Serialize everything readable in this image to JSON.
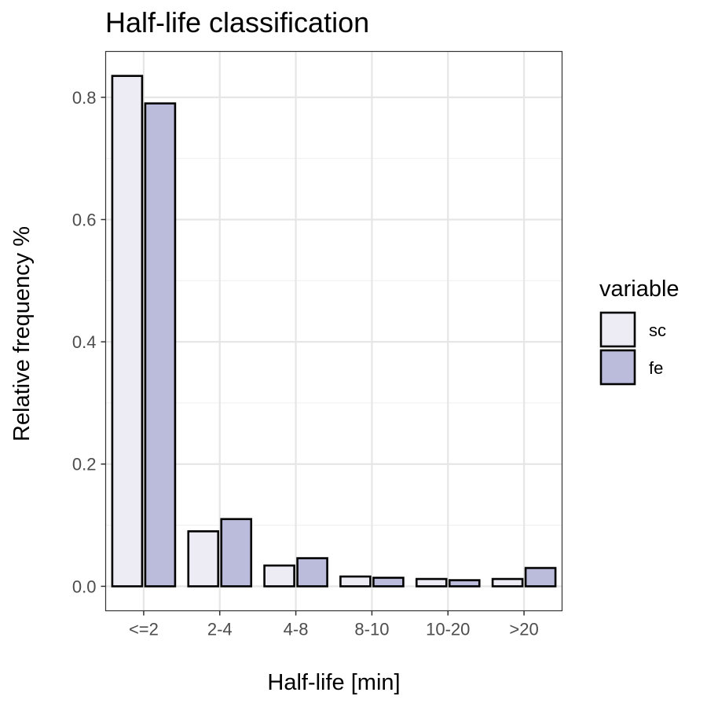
{
  "chart_data": {
    "type": "bar",
    "title": "Half-life classification",
    "xlabel": "Half-life [min]",
    "ylabel": "Relative frequency %",
    "categories": [
      "<=2",
      "2-4",
      "4-8",
      "8-10",
      "10-20",
      ">20"
    ],
    "series": [
      {
        "name": "sc",
        "values": [
          0.835,
          0.09,
          0.034,
          0.016,
          0.012,
          0.012
        ],
        "color": "#edecf5"
      },
      {
        "name": "fe",
        "values": [
          0.79,
          0.11,
          0.046,
          0.014,
          0.01,
          0.03
        ],
        "color": "#bbbcdc"
      }
    ],
    "ylim": [
      -0.04,
      0.875
    ],
    "yticks": [
      0.0,
      0.2,
      0.4,
      0.6,
      0.8
    ],
    "ytick_labels": [
      "0.0",
      "0.2",
      "0.4",
      "0.6",
      "0.8"
    ],
    "legend": {
      "title": "variable",
      "position": "right"
    },
    "grid": true
  }
}
